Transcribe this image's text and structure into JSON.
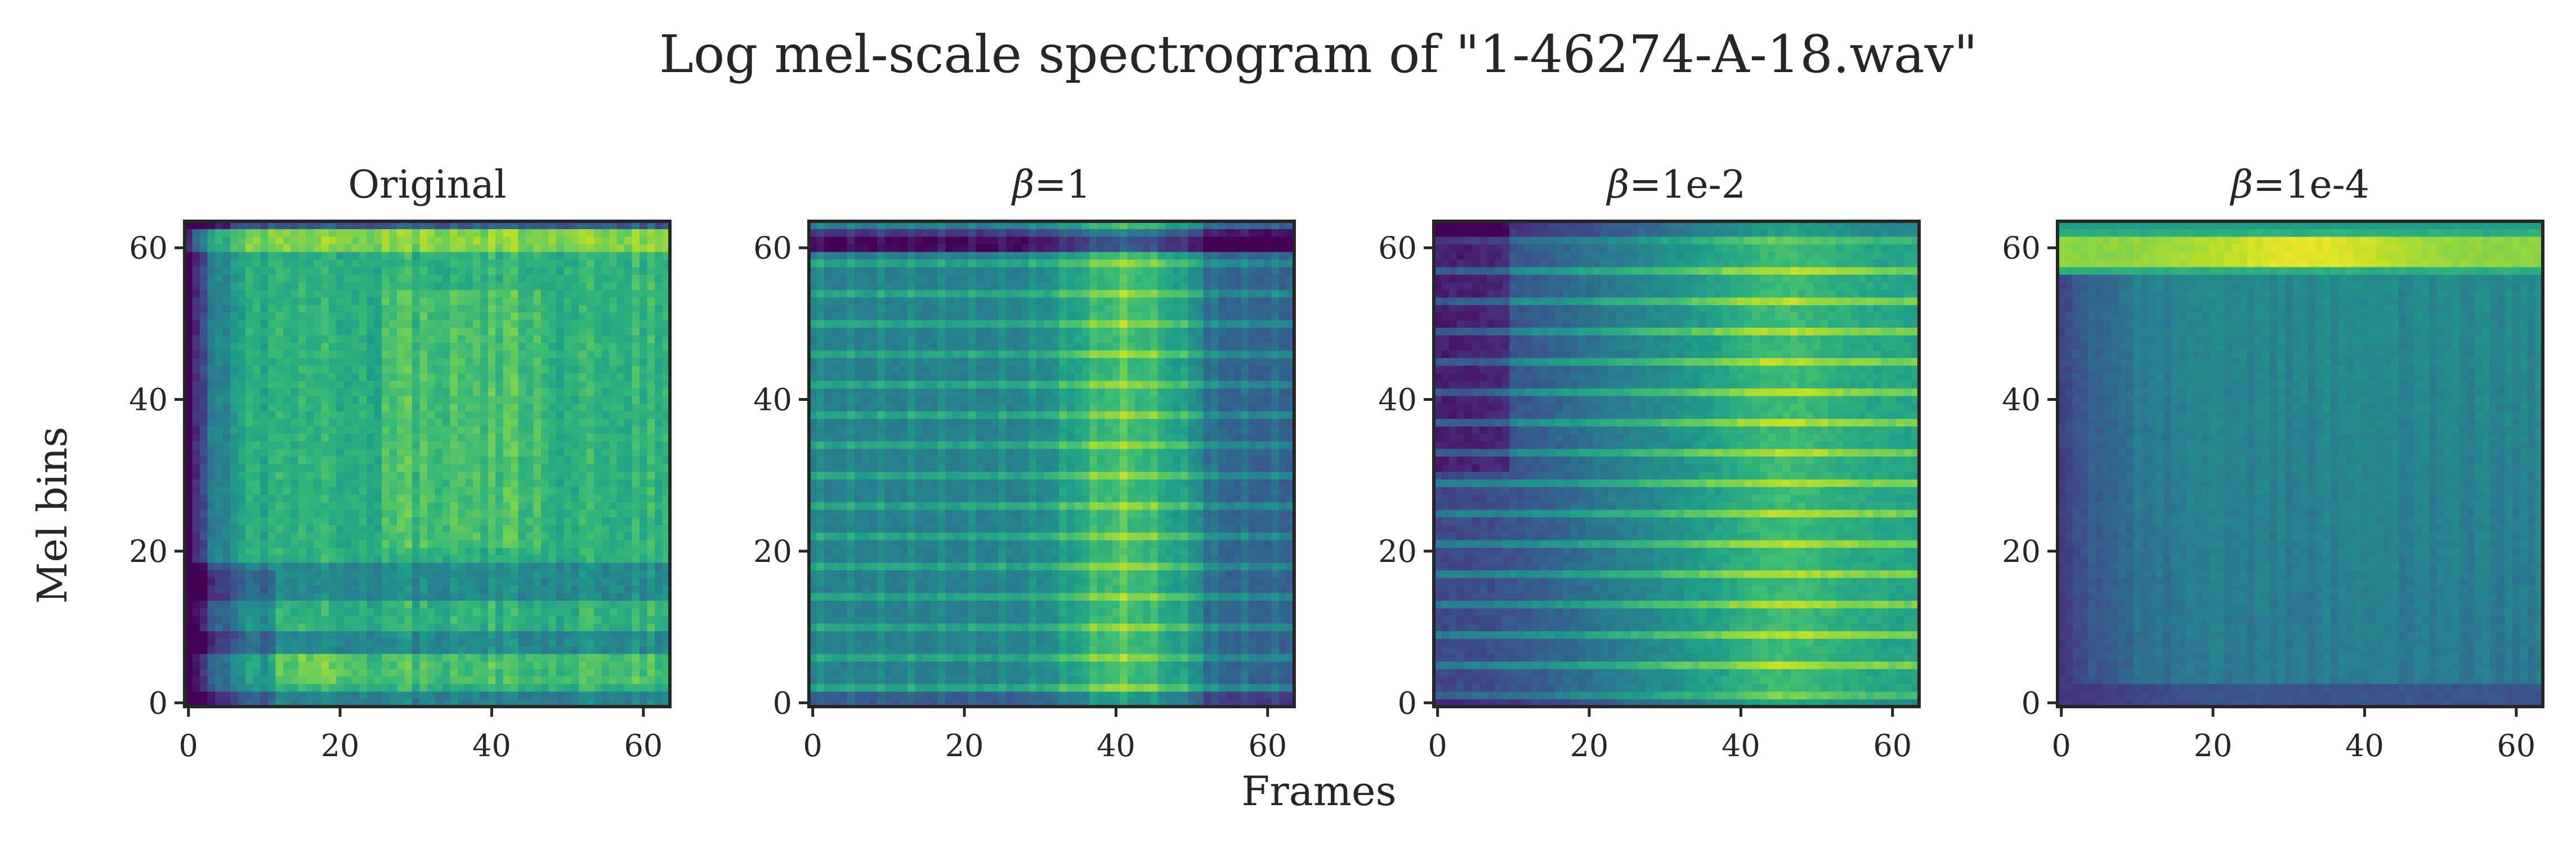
{
  "chart_data": {
    "type": "heatmap",
    "suptitle": "Log mel-scale spectrogram of \"1-46274-A-18.wav\"",
    "xlabel": "Frames",
    "ylabel": "Mel bins",
    "colormap": "viridis",
    "grid": 64,
    "xlim": [
      -0.5,
      63.5
    ],
    "ylim": [
      -0.5,
      63.5
    ],
    "xticks": [
      0,
      20,
      40,
      60
    ],
    "yticks": [
      0,
      20,
      40,
      60
    ],
    "xtick_labels": [
      "0",
      "20",
      "40",
      "60"
    ],
    "ytick_labels": [
      "0",
      "20",
      "40",
      "60"
    ],
    "panels": [
      {
        "id": "original",
        "title": "Original",
        "title_symbol": "",
        "title_value": "",
        "pattern": "original"
      },
      {
        "id": "beta1",
        "title": "β=1",
        "title_symbol": "β",
        "title_value": "=1",
        "pattern": "beta1"
      },
      {
        "id": "beta1e-2",
        "title": "β=1e-2",
        "title_symbol": "β",
        "title_value": "=1e-2",
        "pattern": "beta1e2"
      },
      {
        "id": "beta1e-4",
        "title": "β=1e-4",
        "title_symbol": "β",
        "title_value": "=1e-4",
        "pattern": "beta1e4"
      }
    ]
  },
  "colors": {
    "viridis": [
      "#440154",
      "#482878",
      "#3e4989",
      "#31688e",
      "#26828e",
      "#1f9e89",
      "#35b779",
      "#6ece58",
      "#b5de2b",
      "#fde725"
    ],
    "frame": "#262626",
    "text": "#262626",
    "background": "#ffffff"
  }
}
